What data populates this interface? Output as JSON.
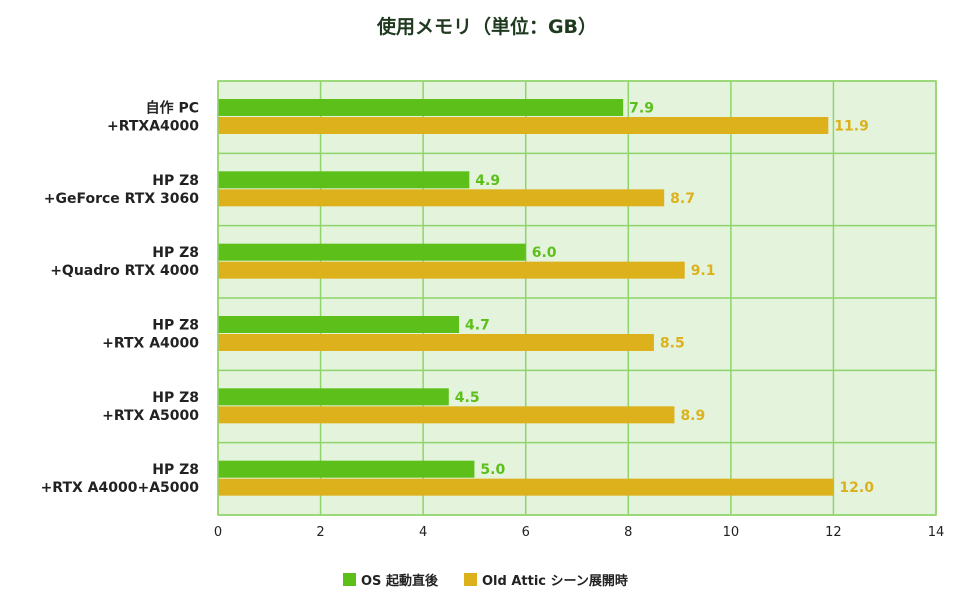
{
  "chart_data": {
    "type": "bar",
    "orientation": "horizontal",
    "title": "使用メモリ（単位：GB）",
    "categories": [
      [
        "自作 PC",
        "+RTXA4000"
      ],
      [
        "HP Z8",
        "+GeForce RTX 3060"
      ],
      [
        "HP Z8",
        "+Quadro RTX 4000"
      ],
      [
        "HP Z8",
        "+RTX A4000"
      ],
      [
        "HP Z8",
        "+RTX A5000"
      ],
      [
        "HP Z8",
        "+RTX A4000+A5000"
      ]
    ],
    "series": [
      {
        "name": "OS 起動直後",
        "color": "#5cbf1a",
        "values": [
          7.9,
          4.9,
          6.0,
          4.7,
          4.5,
          5.0
        ],
        "labels": [
          "7.9",
          "4.9",
          "6.0",
          "4.7",
          "4.5",
          "5.0"
        ]
      },
      {
        "name": "Old Attic シーン展開時",
        "color": "#ddb11c",
        "values": [
          11.9,
          8.7,
          9.1,
          8.5,
          8.9,
          12.0
        ],
        "labels": [
          "11.9",
          "8.7",
          "9.1",
          "8.5",
          "8.9",
          "12.0"
        ]
      }
    ],
    "xlim": [
      0,
      14
    ],
    "xticks": [
      "0",
      "2",
      "4",
      "6",
      "8",
      "10",
      "12",
      "14"
    ],
    "grid": true,
    "legend_position": "bottom-center",
    "plot_background": "#e3f3dc",
    "grid_color": "#8fd46a"
  }
}
